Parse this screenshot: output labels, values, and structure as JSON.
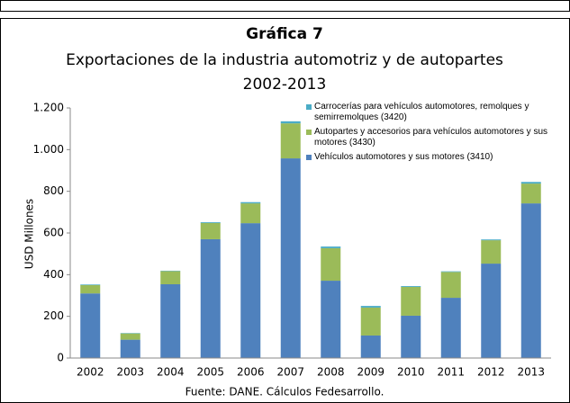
{
  "chart_data": {
    "type": "bar",
    "stacked": true,
    "title": "Gráfica 7",
    "subtitle": [
      "Exportaciones de la industria automotriz y de autopartes",
      "2002-2013"
    ],
    "y_label": "USD Millones",
    "source": "Fuente: DANE. Cálculos Fedesarrollo.",
    "categories": [
      "2002",
      "2003",
      "2004",
      "2005",
      "2006",
      "2007",
      "2008",
      "2009",
      "2010",
      "2011",
      "2012",
      "2013"
    ],
    "series": [
      {
        "name": "Vehículos automotores y sus motores (3410)",
        "color": "#4f81bd",
        "values": [
          310,
          88,
          354,
          570,
          647,
          958,
          371,
          108,
          203,
          289,
          453,
          742
        ]
      },
      {
        "name": "Autopartes y accesorios para vehículos automotores y sus motores (3430)",
        "color": "#9bbb59",
        "values": [
          40,
          30,
          63,
          78,
          95,
          168,
          156,
          134,
          138,
          124,
          112,
          95
        ]
      },
      {
        "name": "Carrocerías para vehículos automotores, remolques y semirremolques (3420)",
        "color": "#4bacc6",
        "values": [
          3,
          2,
          2,
          4,
          6,
          10,
          8,
          8,
          4,
          3,
          4,
          8
        ]
      }
    ],
    "ylim": [
      0,
      1200
    ],
    "yticks": [
      0,
      200,
      400,
      600,
      800,
      {
        "value": 1000,
        "label": "1.000"
      },
      {
        "value": 1200,
        "label": "1.200"
      }
    ]
  }
}
